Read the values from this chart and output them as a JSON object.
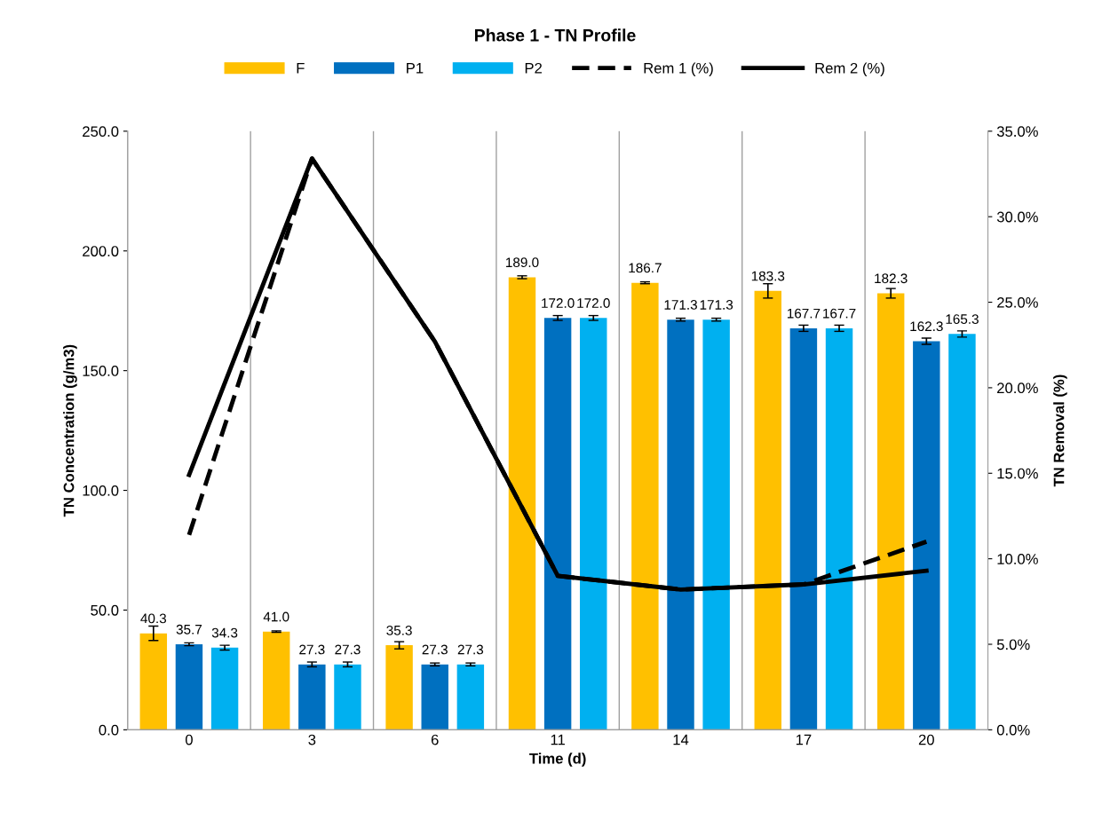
{
  "chart_data": {
    "type": "bar",
    "title": "Phase 1 - TN Profile",
    "xlabel": "Time (d)",
    "ylabel": "TN Concentration (g/m3)",
    "y2label": "TN Removal (%)",
    "categories": [
      "0",
      "3",
      "6",
      "11",
      "14",
      "17",
      "20"
    ],
    "series": [
      {
        "name": "F",
        "color": "#ffc000",
        "values": [
          40.3,
          41.0,
          35.3,
          189.0,
          186.7,
          183.3,
          182.3
        ],
        "value_labels": [
          "40.3",
          "41.0",
          "35.3",
          "189.0",
          "186.7",
          "183.3",
          "182.3"
        ],
        "errors": [
          3,
          0.3,
          1.5,
          0.6,
          0.4,
          3,
          2
        ]
      },
      {
        "name": "P1",
        "color": "#0070c0",
        "values": [
          35.7,
          27.3,
          27.3,
          172.0,
          171.3,
          167.7,
          162.3
        ],
        "value_labels": [
          "35.7",
          "27.3",
          "27.3",
          "172.0",
          "171.3",
          "167.7",
          "162.3"
        ],
        "errors": [
          0.6,
          1,
          0.6,
          1,
          0.6,
          1.3,
          1.3
        ]
      },
      {
        "name": "P2",
        "color": "#00b0f0",
        "values": [
          34.3,
          27.3,
          27.3,
          172.0,
          171.3,
          167.7,
          165.3
        ],
        "value_labels": [
          "34.3",
          "27.3",
          "27.3",
          "172.0",
          "171.3",
          "167.7",
          "165.3"
        ],
        "errors": [
          1,
          1,
          0.6,
          1,
          0.6,
          1.3,
          1.3
        ]
      },
      {
        "name": "Rem 1 (%)",
        "type": "line",
        "axis": "y2",
        "color": "#000000",
        "line_style": "dashed",
        "values": [
          11.4,
          33.4,
          22.7,
          9.0,
          8.2,
          8.5,
          11.0
        ]
      },
      {
        "name": "Rem 2 (%)",
        "type": "line",
        "axis": "y2",
        "color": "#000000",
        "line_style": "solid",
        "values": [
          14.9,
          33.4,
          22.7,
          9.0,
          8.2,
          8.5,
          9.3
        ]
      }
    ],
    "ylim": [
      0,
      250
    ],
    "yticks": [
      {
        "value": 0,
        "label": "0.0"
      },
      {
        "value": 50,
        "label": "50.0"
      },
      {
        "value": 100,
        "label": "100.0"
      },
      {
        "value": 150,
        "label": "150.0"
      },
      {
        "value": 200,
        "label": "200.0"
      },
      {
        "value": 250,
        "label": "250.0"
      }
    ],
    "y2lim": [
      0,
      35
    ],
    "y2ticks": [
      {
        "value": 0,
        "label": "0.0%"
      },
      {
        "value": 5,
        "label": "5.0%"
      },
      {
        "value": 10,
        "label": "10.0%"
      },
      {
        "value": 15,
        "label": "15.0%"
      },
      {
        "value": 20,
        "label": "20.0%"
      },
      {
        "value": 25,
        "label": "25.0%"
      },
      {
        "value": 30,
        "label": "30.0%"
      },
      {
        "value": 35,
        "label": "35.0%"
      }
    ],
    "grid": "x",
    "legend": "top",
    "marker": "none"
  }
}
